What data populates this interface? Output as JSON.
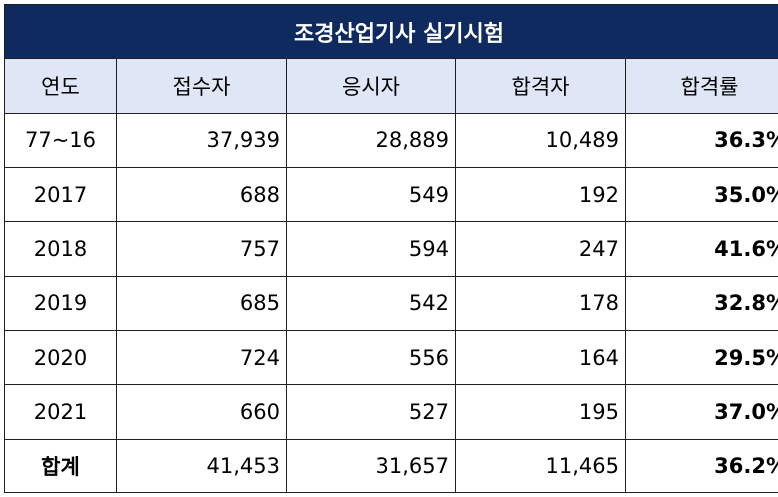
{
  "title": "조경산업기사 실기시험",
  "headers": [
    "연도",
    "접수자",
    "응시자",
    "합격자",
    "합격률"
  ],
  "rows": [
    {
      "year": "77~16",
      "applicants": "37,939",
      "examinees": "28,889",
      "passers": "10,489",
      "rate": "36.3%"
    },
    {
      "year": "2017",
      "applicants": "688",
      "examinees": "549",
      "passers": "192",
      "rate": "35.0%"
    },
    {
      "year": "2018",
      "applicants": "757",
      "examinees": "594",
      "passers": "247",
      "rate": "41.6%"
    },
    {
      "year": "2019",
      "applicants": "685",
      "examinees": "542",
      "passers": "178",
      "rate": "32.8%"
    },
    {
      "year": "2020",
      "applicants": "724",
      "examinees": "556",
      "passers": "164",
      "rate": "29.5%"
    },
    {
      "year": "2021",
      "applicants": "660",
      "examinees": "527",
      "passers": "195",
      "rate": "37.0%"
    }
  ],
  "total": {
    "year": "합계",
    "applicants": "41,453",
    "examinees": "31,657",
    "passers": "11,465",
    "rate": "36.2%"
  },
  "colors": {
    "title_bg": "#0f2a5f",
    "header_bg": "#dfe6f5",
    "title_text": "#ffffff"
  }
}
